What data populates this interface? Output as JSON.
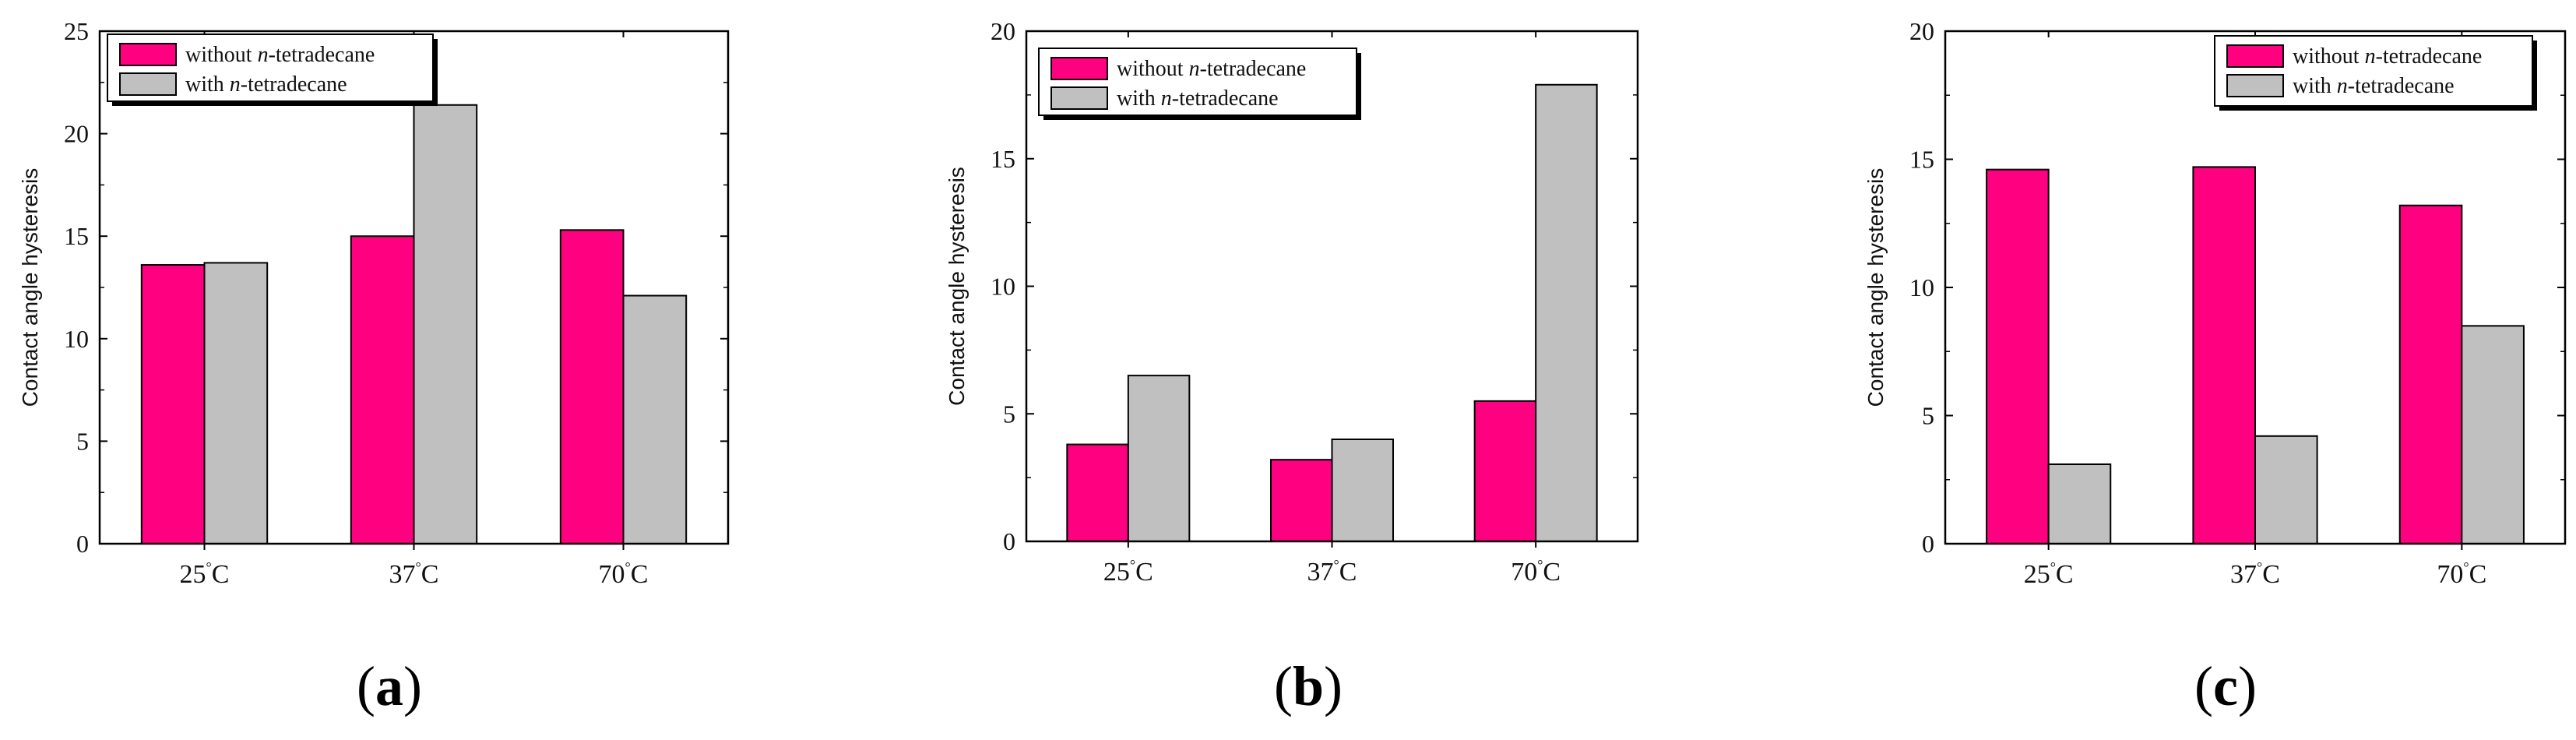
{
  "colors": {
    "without": "#FF0080",
    "with": "#C0C0C0"
  },
  "legend": {
    "without_prefix": "without ",
    "with_prefix": "with ",
    "italic": "n",
    "suffix": "-tetradecane"
  },
  "degree_symbol": "°",
  "chart_data": [
    {
      "type": "bar",
      "panel_label": "(a)",
      "panel_letter": "a",
      "ylabel": "Contact angle hysteresis",
      "xlabel": "",
      "ylim": [
        0,
        25
      ],
      "yticks": [
        0,
        5,
        10,
        15,
        20,
        25
      ],
      "legend_position": "top-left",
      "categories": [
        "25C",
        "37C",
        "70C"
      ],
      "series": [
        {
          "name": "without n-tetradecane",
          "values": [
            13.6,
            15.0,
            15.3
          ]
        },
        {
          "name": "with n-tetradecane",
          "values": [
            13.7,
            21.4,
            12.1
          ]
        }
      ]
    },
    {
      "type": "bar",
      "panel_label": "(b)",
      "panel_letter": "b",
      "ylabel": "Contact angle hysteresis",
      "xlabel": "",
      "ylim": [
        0,
        20
      ],
      "yticks": [
        0,
        5,
        10,
        15,
        20
      ],
      "legend_position": "top-left",
      "categories": [
        "25C",
        "37C",
        "70C"
      ],
      "series": [
        {
          "name": "without n-tetradecane",
          "values": [
            3.8,
            3.2,
            5.5
          ]
        },
        {
          "name": "with n-tetradecane",
          "values": [
            6.5,
            4.0,
            17.9
          ]
        }
      ]
    },
    {
      "type": "bar",
      "panel_label": "(c)",
      "panel_letter": "c",
      "ylabel": "Contact angle hysteresis",
      "xlabel": "",
      "ylim": [
        0,
        20
      ],
      "yticks": [
        0,
        5,
        10,
        15,
        20
      ],
      "legend_position": "top-right",
      "categories": [
        "25C",
        "37C",
        "70C"
      ],
      "series": [
        {
          "name": "without n-tetradecane",
          "values": [
            14.6,
            14.7,
            13.2
          ]
        },
        {
          "name": "with n-tetradecane",
          "values": [
            3.1,
            4.2,
            8.5
          ]
        }
      ]
    }
  ]
}
